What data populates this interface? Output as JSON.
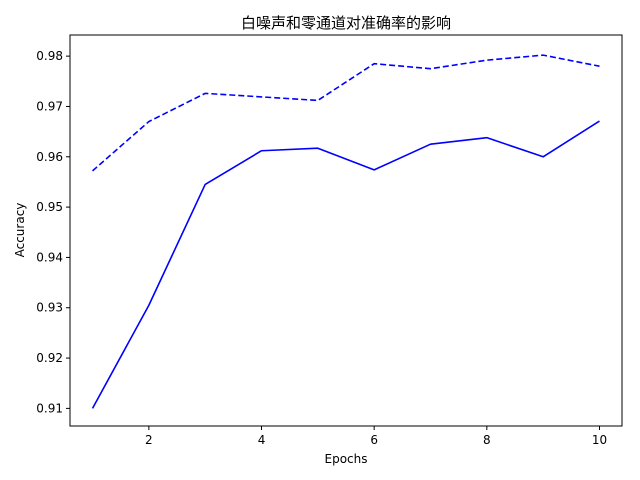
{
  "chart_data": {
    "type": "line",
    "title": "白噪声和零通道对准确率的影响",
    "xlabel": "Epochs",
    "ylabel": "Accuracy",
    "xlim": [
      0.6,
      10.4
    ],
    "ylim": [
      0.9065,
      0.9842
    ],
    "x_ticks": [
      2,
      4,
      6,
      8,
      10
    ],
    "y_ticks": [
      0.91,
      0.92,
      0.93,
      0.94,
      0.95,
      0.96,
      0.97,
      0.98
    ],
    "x": [
      1,
      2,
      3,
      4,
      5,
      6,
      7,
      8,
      9,
      10
    ],
    "series": [
      {
        "style": "solid",
        "color": "#0000ff",
        "values": [
          0.91,
          0.9305,
          0.9545,
          0.9612,
          0.9617,
          0.9574,
          0.9625,
          0.9638,
          0.96,
          0.9671
        ]
      },
      {
        "style": "dashed",
        "color": "#0000ff",
        "values": [
          0.9572,
          0.967,
          0.9726,
          0.9719,
          0.9712,
          0.9785,
          0.9775,
          0.9792,
          0.9802,
          0.978
        ]
      }
    ],
    "grid": false,
    "legend": "none"
  }
}
